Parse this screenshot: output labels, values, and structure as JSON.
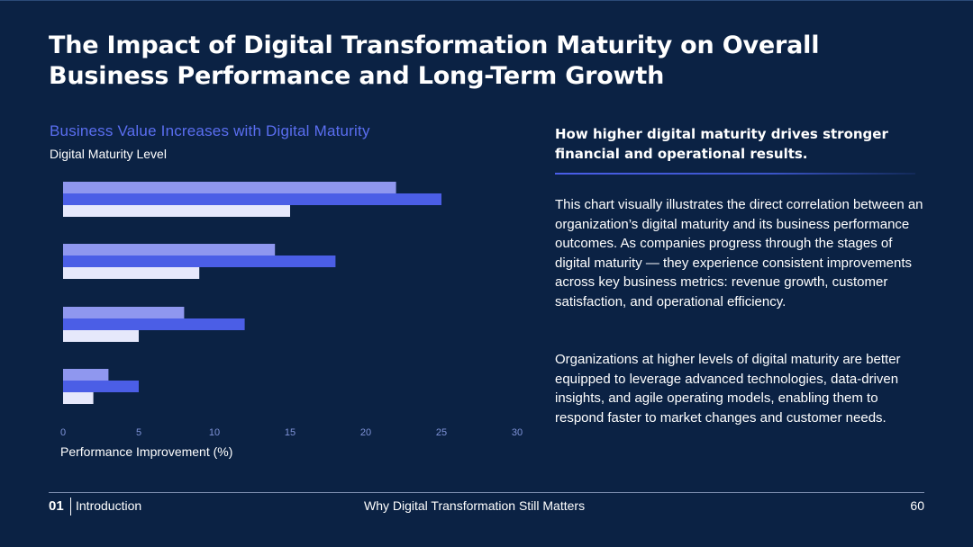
{
  "slide": {
    "title": "The Impact of Digital Transformation Maturity on Overall Business Performance and Long-Term Growth"
  },
  "chart_data": {
    "type": "bar",
    "orientation": "horizontal",
    "title": "Business Value Increases with Digital Maturity",
    "ylabel": "Digital Maturity Level",
    "xlabel": "Performance Improvement (%)",
    "xlim": [
      0,
      30
    ],
    "xticks": [
      0,
      5,
      10,
      15,
      20,
      25,
      30
    ],
    "categories": [
      "",
      "",
      "",
      ""
    ],
    "series": [
      {
        "name": "",
        "color": "#8f97ef",
        "values": [
          22,
          14,
          8,
          3
        ]
      },
      {
        "name": "",
        "color": "#4b5ee6",
        "values": [
          25,
          18,
          12,
          5
        ]
      },
      {
        "name": "",
        "color": "#e6e8fb",
        "values": [
          15,
          9,
          5,
          2
        ]
      }
    ],
    "grid": false,
    "legend": "none"
  },
  "side": {
    "heading": "How higher digital maturity drives stronger financial and operational results.",
    "paragraph1": "This chart visually illustrates the direct correlation between an organization’s digital maturity and its business performance outcomes. As companies progress through the stages of digital maturity — they experience consistent improvements across key business metrics: revenue growth, customer satisfaction, and operational efficiency.",
    "paragraph2": "Organizations at higher levels of digital maturity are better equipped to leverage advanced technologies, data-driven insights, and agile operating models, enabling them to respond faster to market changes and customer needs."
  },
  "footer": {
    "number": "01",
    "section": "Introduction",
    "center": "Why Digital Transformation Still Matters",
    "page": "60"
  },
  "colors": {
    "background": "#0b2244",
    "accent": "#5a6ef0",
    "tick": "#7f93d8"
  }
}
